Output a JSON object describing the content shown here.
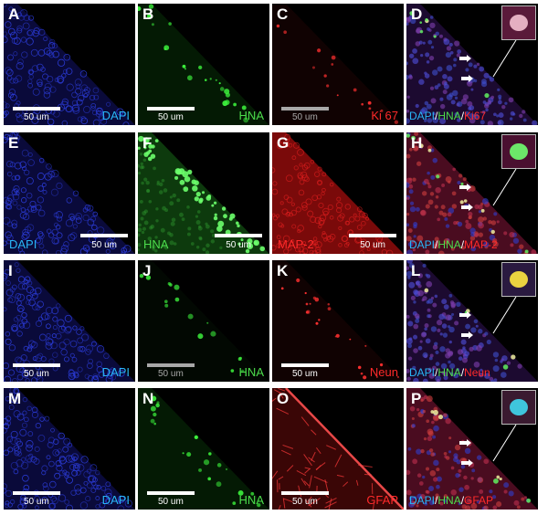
{
  "panels": [
    {
      "letter": "A",
      "label_parts": [
        {
          "text": "DAPI",
          "color": "#29b6f6"
        }
      ],
      "scale": "50 um",
      "scale_color": "#ffffff",
      "scale_pos": "bottom-left",
      "texture": "blue"
    },
    {
      "letter": "B",
      "label_parts": [
        {
          "text": "HNA",
          "color": "#4cdd4c"
        }
      ],
      "scale": "50 um",
      "scale_color": "#ffffff",
      "scale_pos": "bottom-left",
      "texture": "green-edge"
    },
    {
      "letter": "C",
      "label_parts": [
        {
          "text": "Ki 67",
          "color": "#ff2a2a"
        }
      ],
      "scale": "50 um",
      "scale_color": "#a8a8a8",
      "scale_pos": "bottom-left",
      "texture": "red-sparse"
    },
    {
      "letter": "D",
      "label_parts": [
        {
          "text": "DAPI",
          "color": "#29b6f6"
        },
        {
          "text": "/",
          "color": "#ffffff"
        },
        {
          "text": "HNA",
          "color": "#4cdd4c"
        },
        {
          "text": "/",
          "color": "#ffffff"
        },
        {
          "text": "Ki67",
          "color": "#ff2a2a"
        }
      ],
      "scale": "",
      "scale_pos": "none",
      "texture": "merge",
      "inset": "pink"
    },
    {
      "letter": "E",
      "label_parts": [
        {
          "text": "DAPI",
          "color": "#29b6f6"
        }
      ],
      "scale": "50 um",
      "scale_color": "#ffffff",
      "scale_pos": "bottom-right",
      "label_pos": "left",
      "texture": "blue"
    },
    {
      "letter": "F",
      "label_parts": [
        {
          "text": "HNA",
          "color": "#4cdd4c"
        }
      ],
      "scale": "50 um",
      "scale_color": "#ffffff",
      "scale_pos": "bottom-right",
      "label_pos": "left",
      "texture": "green-full"
    },
    {
      "letter": "G",
      "label_parts": [
        {
          "text": "MAP-2",
          "color": "#ff2a2a"
        }
      ],
      "scale": "50 um",
      "scale_color": "#ffffff",
      "scale_pos": "bottom-right",
      "label_pos": "left",
      "texture": "red-full"
    },
    {
      "letter": "H",
      "label_parts": [
        {
          "text": "DAPI",
          "color": "#29b6f6"
        },
        {
          "text": "/",
          "color": "#ffffff"
        },
        {
          "text": "HNA",
          "color": "#4cdd4c"
        },
        {
          "text": "/",
          "color": "#ffffff"
        },
        {
          "text": "MAP-2",
          "color": "#ff2a2a"
        }
      ],
      "scale": "",
      "scale_pos": "none",
      "texture": "merge-red",
      "inset": "green"
    },
    {
      "letter": "I",
      "label_parts": [
        {
          "text": "DAPI",
          "color": "#29b6f6"
        }
      ],
      "scale": "50 um",
      "scale_color": "#ffffff",
      "scale_pos": "bottom-left",
      "texture": "blue"
    },
    {
      "letter": "J",
      "label_parts": [
        {
          "text": "HNA",
          "color": "#4cdd4c"
        }
      ],
      "scale": "50 um",
      "scale_color": "#a8a8a8",
      "scale_pos": "bottom-left",
      "texture": "green-sparse"
    },
    {
      "letter": "K",
      "label_parts": [
        {
          "text": "Neun",
          "color": "#ff2a2a"
        }
      ],
      "scale": "50 um",
      "scale_color": "#ffffff",
      "scale_pos": "bottom-left",
      "texture": "red-sparse"
    },
    {
      "letter": "L",
      "label_parts": [
        {
          "text": "DAPI",
          "color": "#29b6f6"
        },
        {
          "text": "/",
          "color": "#ffffff"
        },
        {
          "text": "HNA",
          "color": "#4cdd4c"
        },
        {
          "text": "/",
          "color": "#ffffff"
        },
        {
          "text": "Neun",
          "color": "#ff2a2a"
        }
      ],
      "scale": "",
      "scale_pos": "none",
      "texture": "merge",
      "inset": "yellow"
    },
    {
      "letter": "M",
      "label_parts": [
        {
          "text": "DAPI",
          "color": "#29b6f6"
        }
      ],
      "scale": "50 um",
      "scale_color": "#ffffff",
      "scale_pos": "bottom-left",
      "texture": "blue"
    },
    {
      "letter": "N",
      "label_parts": [
        {
          "text": "HNA",
          "color": "#4cdd4c"
        }
      ],
      "scale": "50 um",
      "scale_color": "#ffffff",
      "scale_pos": "bottom-left",
      "texture": "green-edge"
    },
    {
      "letter": "O",
      "label_parts": [
        {
          "text": "GFAP",
          "color": "#ff2a2a"
        }
      ],
      "scale": "50 um",
      "scale_color": "#ffffff",
      "scale_pos": "bottom-left",
      "texture": "red-fiber"
    },
    {
      "letter": "P",
      "label_parts": [
        {
          "text": "DAPI",
          "color": "#29b6f6"
        },
        {
          "text": "/",
          "color": "#ffffff"
        },
        {
          "text": "HNA",
          "color": "#4cdd4c"
        },
        {
          "text": "/",
          "color": "#ffffff"
        },
        {
          "text": "GFAP",
          "color": "#ff2a2a"
        }
      ],
      "scale": "",
      "scale_pos": "none",
      "texture": "merge-red",
      "inset": "cyan"
    }
  ]
}
